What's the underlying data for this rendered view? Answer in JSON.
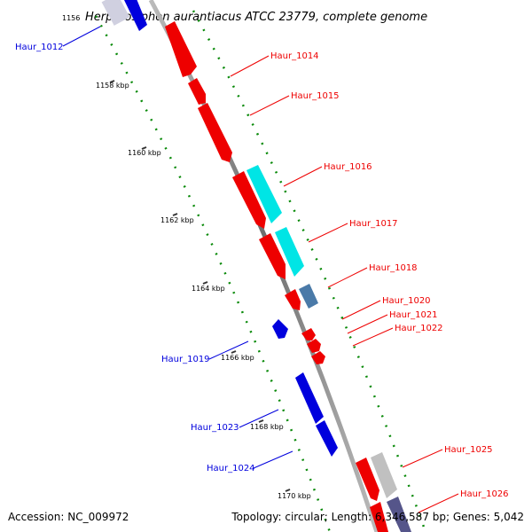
{
  "title": "Herpetosiphon aurantiacus ATCC 23779, complete genome",
  "footer": {
    "accession": "Accession: NC_009972",
    "topology": "Topology: circular; Length: 6,346,587 bp; Genes: 5,042"
  },
  "ticks": [
    "1156",
    "1158 kbp",
    "1160 kbp",
    "1162 kbp",
    "1164 kbp",
    "1166 kbp",
    "1168 kbp",
    "1170 kbp"
  ],
  "genes": [
    {
      "id": "Haur_1012",
      "strand": "minus",
      "color": "#0000dd"
    },
    {
      "id": "Haur_1014",
      "strand": "plus",
      "color": "#ee0000"
    },
    {
      "id": "Haur_1015",
      "strand": "plus",
      "color": "#ee0000"
    },
    {
      "id": "Haur_1016",
      "strand": "plus",
      "color": "#ee0000"
    },
    {
      "id": "Haur_1017",
      "strand": "plus",
      "color": "#ee0000"
    },
    {
      "id": "Haur_1018",
      "strand": "plus",
      "color": "#ee0000"
    },
    {
      "id": "Haur_1019",
      "strand": "minus",
      "color": "#0000dd"
    },
    {
      "id": "Haur_1020",
      "strand": "plus",
      "color": "#ee0000"
    },
    {
      "id": "Haur_1021",
      "strand": "plus",
      "color": "#ee0000"
    },
    {
      "id": "Haur_1022",
      "strand": "plus",
      "color": "#ee0000"
    },
    {
      "id": "Haur_1023",
      "strand": "minus",
      "color": "#0000dd"
    },
    {
      "id": "Haur_1024",
      "strand": "minus",
      "color": "#0000dd"
    },
    {
      "id": "Haur_1025",
      "strand": "plus",
      "color": "#ee0000"
    },
    {
      "id": "Haur_1026",
      "strand": "plus",
      "color": "#ee0000"
    }
  ],
  "colors": {
    "backbone": "#888888",
    "plus_gene": "#ee0000",
    "minus_gene": "#0000dd",
    "feature_cyan": "#00e5e5",
    "feature_steel": "#4a7aa8",
    "feature_grey": "#c0c0c0",
    "feature_slate": "#55558a",
    "gc_dots": "#0a8a0a"
  }
}
